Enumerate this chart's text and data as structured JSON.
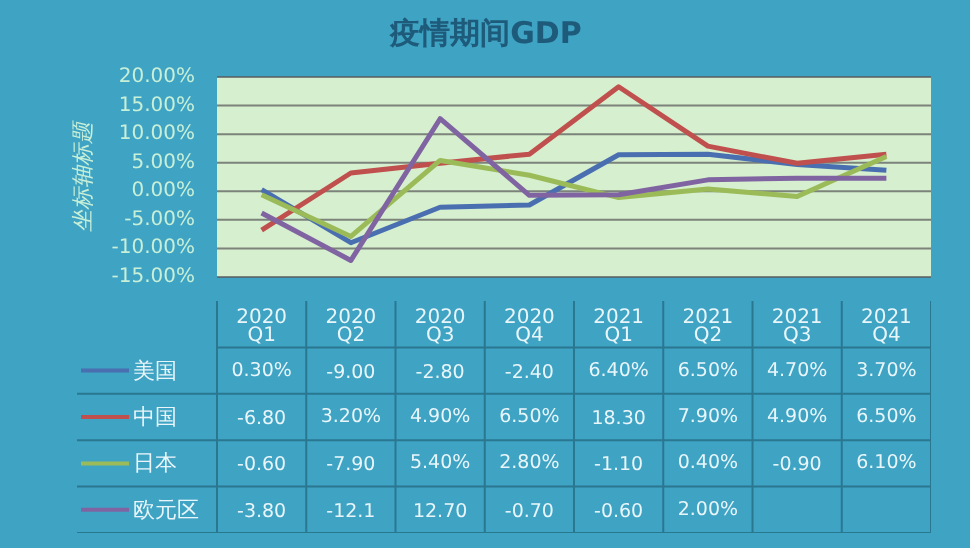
{
  "chart_data": {
    "type": "line",
    "title": "疫情期间GDP",
    "ylabel": "坐标轴标题",
    "categories": [
      "2020 Q1",
      "2020 Q2",
      "2020 Q3",
      "2020 Q4",
      "2021 Q1",
      "2021 Q2",
      "2021 Q3",
      "2021 Q4"
    ],
    "series": [
      {
        "name": "美国",
        "color": "#4a6fb0",
        "values": [
          0.3,
          -9.0,
          -2.8,
          -2.4,
          6.4,
          6.5,
          4.7,
          3.7
        ],
        "value_labels": [
          "0.30%",
          "-9.00",
          "-2.80",
          "-2.40",
          "6.40%",
          "6.50%",
          "4.70%",
          "3.70%"
        ]
      },
      {
        "name": "中国",
        "color": "#c0504d",
        "values": [
          -6.8,
          3.2,
          4.9,
          6.5,
          18.3,
          7.9,
          4.9,
          6.5
        ],
        "value_labels": [
          "-6.80",
          "3.20%",
          "4.90%",
          "6.50%",
          "18.30",
          "7.90%",
          "4.90%",
          "6.50%"
        ]
      },
      {
        "name": "日本",
        "color": "#9bbb59",
        "values": [
          -0.6,
          -7.9,
          5.4,
          2.8,
          -1.1,
          0.4,
          -0.9,
          6.1
        ],
        "value_labels": [
          "-0.60",
          "-7.90",
          "5.40%",
          "2.80%",
          "-1.10",
          "0.40%",
          "-0.90",
          "6.10%"
        ]
      },
      {
        "name": "欧元区",
        "color": "#8064a2",
        "values": [
          -3.8,
          -12.1,
          12.7,
          -0.7,
          -0.6,
          2.0,
          2.3,
          2.3
        ],
        "value_labels": [
          "-3.80",
          "-12.1",
          "12.70",
          "-0.70",
          "-0.60",
          "2.00%",
          null,
          null
        ]
      }
    ],
    "ylim": [
      -15,
      20
    ],
    "yticks": [
      {
        "value": -15,
        "label": "-15.00%"
      },
      {
        "value": -10,
        "label": "-10.00%"
      },
      {
        "value": -5,
        "label": "-5.00%"
      },
      {
        "value": 0,
        "label": "0.00%"
      },
      {
        "value": 5,
        "label": "5.00%"
      },
      {
        "value": 10,
        "label": "10.00%"
      },
      {
        "value": 15,
        "label": "15.00%"
      },
      {
        "value": 20,
        "label": "20.00%"
      }
    ],
    "grid": "y",
    "legend": "bottom",
    "marker": "none",
    "line_style": "solid"
  }
}
